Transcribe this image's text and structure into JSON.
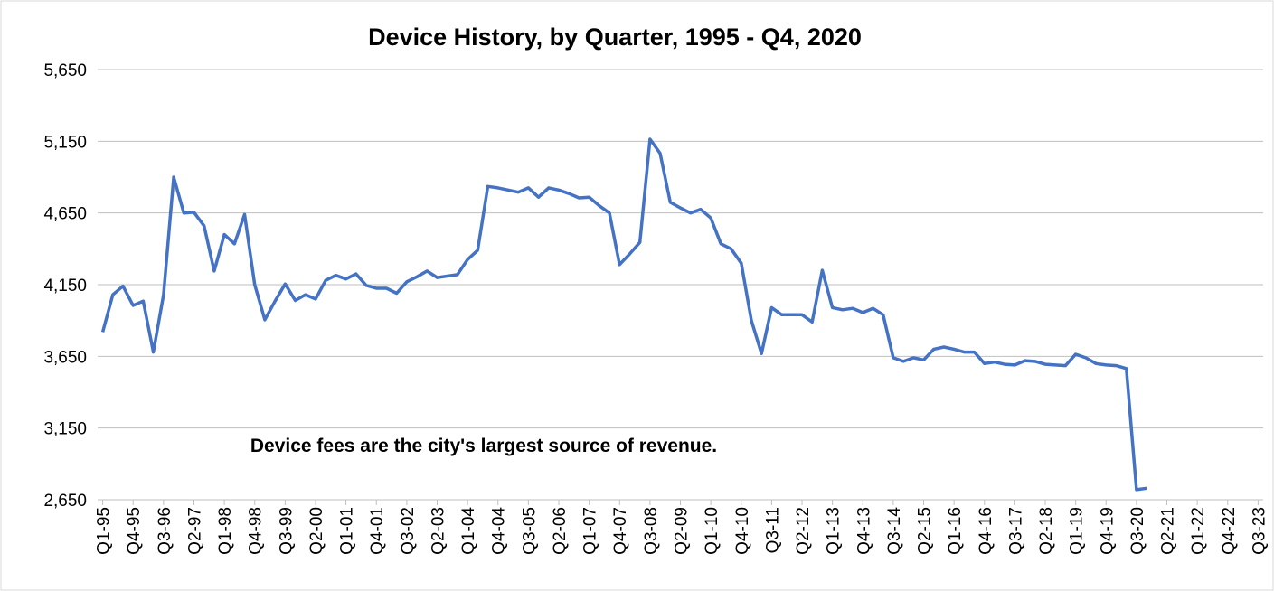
{
  "chart_data": {
    "type": "line",
    "title": "Device History, by Quarter, 1995 - Q4, 2020",
    "annotation": "Device fees are the city's largest source of revenue.",
    "categories": [
      "Q1-95",
      null,
      null,
      "Q4-95",
      null,
      null,
      "Q3-96",
      null,
      null,
      "Q2-97",
      null,
      null,
      "Q1-98",
      null,
      null,
      "Q4-98",
      null,
      null,
      "Q3-99",
      null,
      null,
      "Q2-00",
      null,
      null,
      "Q1-01",
      null,
      null,
      "Q4-01",
      null,
      null,
      "Q3-02",
      null,
      null,
      "Q2-03",
      null,
      null,
      "Q1-04",
      null,
      null,
      "Q4-04",
      null,
      null,
      "Q3-05",
      null,
      null,
      "Q2-06",
      null,
      null,
      "Q1-07",
      null,
      null,
      "Q4-07",
      null,
      null,
      "Q3-08",
      null,
      null,
      "Q2-09",
      null,
      null,
      "Q1-10",
      null,
      null,
      "Q4-10",
      null,
      null,
      "Q3-11",
      null,
      null,
      "Q2-12",
      null,
      null,
      "Q1-13",
      null,
      null,
      "Q4-13",
      null,
      null,
      "Q3-14",
      null,
      null,
      "Q2-15",
      null,
      null,
      "Q1-16",
      null,
      null,
      "Q4-16",
      null,
      null,
      "Q3-17",
      null,
      null,
      "Q2-18",
      null,
      null,
      "Q1-19",
      null,
      null,
      "Q4-19",
      null,
      null,
      "Q3-20",
      null,
      null,
      "Q2-21",
      null,
      null,
      "Q1-22",
      null,
      null,
      "Q4-22",
      null,
      null,
      "Q3-23"
    ],
    "series": [
      {
        "color": "#4472c4",
        "values": [
          3820,
          4080,
          4140,
          4005,
          4035,
          3680,
          4080,
          4900,
          4650,
          4655,
          4560,
          4245,
          4500,
          4435,
          4640,
          4150,
          3905,
          4035,
          4155,
          4040,
          4080,
          4050,
          4180,
          4215,
          4190,
          4225,
          4145,
          4125,
          4125,
          4090,
          4170,
          4205,
          4245,
          4200,
          4210,
          4220,
          4325,
          4390,
          4835,
          4825,
          4810,
          4795,
          4825,
          4760,
          4825,
          4810,
          4785,
          4755,
          4760,
          4700,
          4650,
          4290,
          4365,
          4445,
          5165,
          5065,
          4725,
          4685,
          4650,
          4675,
          4615,
          4435,
          4400,
          4300,
          3900,
          3670,
          3990,
          3940,
          3940,
          3940,
          3890,
          4250,
          3990,
          3975,
          3985,
          3955,
          3985,
          3940,
          3640,
          3615,
          3640,
          3625,
          3700,
          3715,
          3700,
          3680,
          3680,
          3600,
          3610,
          3595,
          3590,
          3620,
          3615,
          3595,
          3590,
          3585,
          3665,
          3640,
          3600,
          3590,
          3585,
          3565,
          2720,
          2730,
          null,
          null,
          null,
          null,
          null,
          null,
          null,
          null,
          null,
          null,
          null
        ]
      }
    ],
    "ylim": [
      2650,
      5650
    ],
    "yticks": [
      {
        "value": 2650,
        "label": "2,650"
      },
      {
        "value": 3150,
        "label": "3,150"
      },
      {
        "value": 3650,
        "label": "3,650"
      },
      {
        "value": 4150,
        "label": "4,150"
      },
      {
        "value": 4650,
        "label": "4,650"
      },
      {
        "value": 5150,
        "label": "5,150"
      },
      {
        "value": 5650,
        "label": "5,650"
      }
    ],
    "grid": true
  }
}
